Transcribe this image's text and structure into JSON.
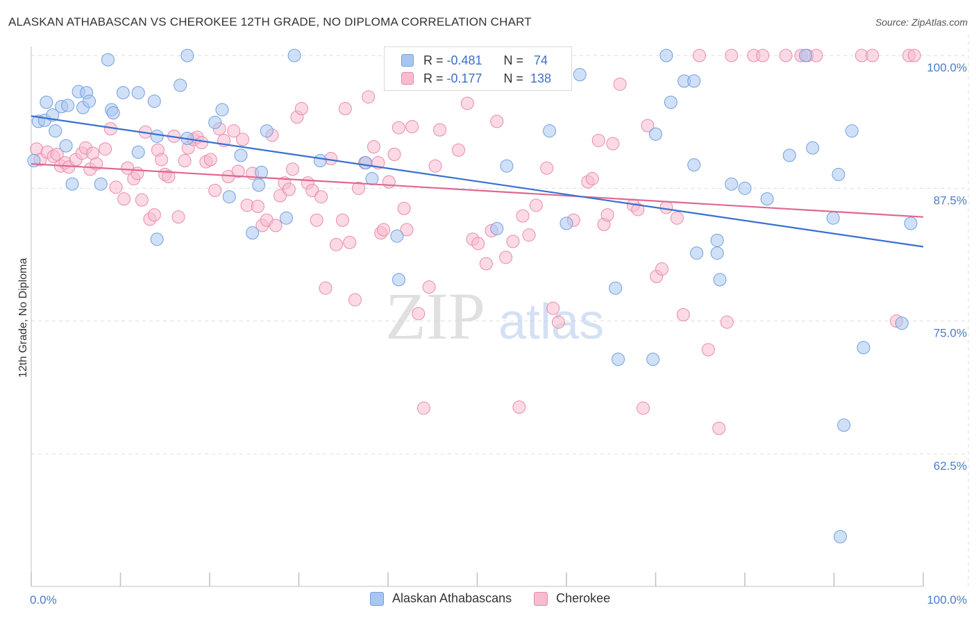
{
  "title": "ALASKAN ATHABASCAN VS CHEROKEE 12TH GRADE, NO DIPLOMA CORRELATION CHART",
  "source": "Source: ZipAtlas.com",
  "watermark": {
    "zip": "ZIP",
    "atlas": "atlas"
  },
  "legend": {
    "rows": [
      {
        "r_label": "R =",
        "r_value": "-0.481",
        "n_label": "N =",
        "n_value": "74",
        "color": "#a9c6f0",
        "border": "#6f9fe0"
      },
      {
        "r_label": "R =",
        "r_value": "-0.177",
        "n_label": "N =",
        "n_value": "138",
        "color": "#f7bcd0",
        "border": "#ea89a9"
      }
    ]
  },
  "bottom_legend": [
    "Alaskan Athabascans",
    "Cherokee"
  ],
  "colors": {
    "blue_fill": "#a9c6f0",
    "blue_stroke": "#6f9fe0",
    "blue_line": "#3570d0",
    "pink_fill": "#f7bcd0",
    "pink_stroke": "#ea89a9",
    "pink_line": "#e0678f"
  },
  "chart_data": {
    "type": "scatter",
    "title": "ALASKAN ATHABASCAN VS CHEROKEE 12TH GRADE, NO DIPLOMA CORRELATION CHART",
    "xlabel": "",
    "ylabel": "12th Grade, No Diploma",
    "xlim": [
      0,
      100
    ],
    "ylim": [
      51.5,
      104
    ],
    "x_tick_labels": [
      "0.0%",
      "100.0%"
    ],
    "y_ticks": [
      100,
      87.5,
      75,
      62.5
    ],
    "y_tick_labels": [
      "100.0%",
      "87.5%",
      "75.0%",
      "62.5%"
    ],
    "grid": true,
    "series": [
      {
        "name": "Alaskan Athabascans",
        "trend": {
          "x": [
            0,
            100
          ],
          "y": [
            94.3,
            82.0
          ]
        },
        "points": [
          [
            0.3,
            90.1
          ],
          [
            0.8,
            93.8
          ],
          [
            1.5,
            93.9
          ],
          [
            1.7,
            95.6
          ],
          [
            2.4,
            94.4
          ],
          [
            2.7,
            92.9
          ],
          [
            3.4,
            95.2
          ],
          [
            3.9,
            91.5
          ],
          [
            4.1,
            95.3
          ],
          [
            4.6,
            87.9
          ],
          [
            5.3,
            96.6
          ],
          [
            5.8,
            95.1
          ],
          [
            6.2,
            96.5
          ],
          [
            6.5,
            95.7
          ],
          [
            7.8,
            87.9
          ],
          [
            8.6,
            99.6
          ],
          [
            9.0,
            94.9
          ],
          [
            9.2,
            94.6
          ],
          [
            10.3,
            96.5
          ],
          [
            12.0,
            96.5
          ],
          [
            12.0,
            90.9
          ],
          [
            13.8,
            95.7
          ],
          [
            14.1,
            82.7
          ],
          [
            14.1,
            92.4
          ],
          [
            16.7,
            97.2
          ],
          [
            17.5,
            100.0
          ],
          [
            17.5,
            92.2
          ],
          [
            20.6,
            93.7
          ],
          [
            21.4,
            94.9
          ],
          [
            22.2,
            86.7
          ],
          [
            23.5,
            90.6
          ],
          [
            24.8,
            83.3
          ],
          [
            25.5,
            87.8
          ],
          [
            25.8,
            89.0
          ],
          [
            26.4,
            92.9
          ],
          [
            28.6,
            84.7
          ],
          [
            29.5,
            100.0
          ],
          [
            32.4,
            90.1
          ],
          [
            37.5,
            89.9
          ],
          [
            38.2,
            88.4
          ],
          [
            41.0,
            83.0
          ],
          [
            41.2,
            78.9
          ],
          [
            52.2,
            83.7
          ],
          [
            53.3,
            89.6
          ],
          [
            58.1,
            92.9
          ],
          [
            60.0,
            84.2
          ],
          [
            61.5,
            98.2
          ],
          [
            65.5,
            78.1
          ],
          [
            65.8,
            71.4
          ],
          [
            69.7,
            71.4
          ],
          [
            70.0,
            92.6
          ],
          [
            71.2,
            100.0
          ],
          [
            71.7,
            95.6
          ],
          [
            73.2,
            97.6
          ],
          [
            74.3,
            97.6
          ],
          [
            74.3,
            89.7
          ],
          [
            74.6,
            81.4
          ],
          [
            76.9,
            82.6
          ],
          [
            76.9,
            81.4
          ],
          [
            77.2,
            78.9
          ],
          [
            78.5,
            87.9
          ],
          [
            80.0,
            87.5
          ],
          [
            82.5,
            86.5
          ],
          [
            85.0,
            90.6
          ],
          [
            86.8,
            100.0
          ],
          [
            87.6,
            91.3
          ],
          [
            89.9,
            84.7
          ],
          [
            90.5,
            88.8
          ],
          [
            90.7,
            54.7
          ],
          [
            91.1,
            65.2
          ],
          [
            92.0,
            92.9
          ],
          [
            93.3,
            72.5
          ],
          [
            97.6,
            74.8
          ],
          [
            98.6,
            84.2
          ]
        ]
      },
      {
        "name": "Cherokee",
        "trend": {
          "x": [
            0,
            100
          ],
          "y": [
            89.8,
            84.8
          ]
        },
        "points": [
          [
            0.6,
            91.2
          ],
          [
            1.0,
            90.2
          ],
          [
            1.8,
            90.9
          ],
          [
            2.5,
            90.5
          ],
          [
            2.9,
            90.7
          ],
          [
            3.3,
            89.6
          ],
          [
            3.8,
            89.9
          ],
          [
            4.2,
            89.5
          ],
          [
            5.0,
            90.2
          ],
          [
            5.7,
            90.8
          ],
          [
            6.1,
            91.3
          ],
          [
            6.6,
            89.3
          ],
          [
            6.9,
            90.8
          ],
          [
            7.3,
            89.8
          ],
          [
            8.3,
            91.2
          ],
          [
            8.9,
            93.1
          ],
          [
            9.5,
            87.6
          ],
          [
            10.4,
            86.5
          ],
          [
            10.8,
            89.4
          ],
          [
            11.5,
            88.4
          ],
          [
            11.9,
            88.9
          ],
          [
            12.4,
            86.4
          ],
          [
            12.8,
            92.8
          ],
          [
            13.3,
            84.6
          ],
          [
            13.8,
            85.0
          ],
          [
            14.2,
            91.1
          ],
          [
            14.6,
            90.2
          ],
          [
            15.0,
            88.8
          ],
          [
            15.4,
            88.6
          ],
          [
            16.0,
            92.4
          ],
          [
            16.5,
            84.8
          ],
          [
            17.2,
            90.1
          ],
          [
            17.6,
            91.3
          ],
          [
            18.2,
            92.1
          ],
          [
            18.6,
            92.3
          ],
          [
            19.1,
            91.8
          ],
          [
            19.6,
            90.0
          ],
          [
            20.1,
            90.2
          ],
          [
            20.6,
            87.3
          ],
          [
            21.1,
            93.1
          ],
          [
            21.6,
            92.0
          ],
          [
            22.1,
            88.6
          ],
          [
            22.7,
            92.9
          ],
          [
            23.2,
            89.1
          ],
          [
            23.7,
            92.1
          ],
          [
            24.2,
            85.9
          ],
          [
            24.8,
            88.9
          ],
          [
            25.4,
            85.8
          ],
          [
            25.9,
            84.0
          ],
          [
            26.4,
            84.5
          ],
          [
            27.0,
            92.5
          ],
          [
            27.4,
            84.0
          ],
          [
            27.9,
            86.8
          ],
          [
            28.4,
            88.0
          ],
          [
            28.9,
            87.4
          ],
          [
            29.3,
            89.3
          ],
          [
            29.8,
            94.2
          ],
          [
            30.3,
            95.0
          ],
          [
            31.0,
            88.0
          ],
          [
            31.5,
            87.3
          ],
          [
            32.0,
            84.5
          ],
          [
            32.5,
            86.7
          ],
          [
            33.0,
            78.1
          ],
          [
            33.6,
            90.3
          ],
          [
            34.2,
            82.2
          ],
          [
            34.9,
            84.5
          ],
          [
            35.2,
            95.0
          ],
          [
            35.7,
            82.4
          ],
          [
            36.3,
            77.0
          ],
          [
            36.7,
            87.5
          ],
          [
            37.4,
            89.9
          ],
          [
            37.8,
            96.1
          ],
          [
            38.4,
            91.4
          ],
          [
            38.9,
            89.9
          ],
          [
            39.2,
            83.3
          ],
          [
            39.5,
            83.6
          ],
          [
            40.1,
            88.1
          ],
          [
            40.7,
            90.7
          ],
          [
            41.2,
            93.2
          ],
          [
            41.8,
            85.6
          ],
          [
            42.1,
            83.6
          ],
          [
            42.7,
            93.3
          ],
          [
            43.4,
            75.7
          ],
          [
            44.0,
            66.8
          ],
          [
            44.6,
            78.2
          ],
          [
            45.3,
            89.6
          ],
          [
            45.8,
            93.0
          ],
          [
            46.4,
            100.0
          ],
          [
            47.9,
            91.1
          ],
          [
            48.3,
            100.0
          ],
          [
            48.9,
            95.5
          ],
          [
            49.5,
            82.7
          ],
          [
            50.1,
            82.3
          ],
          [
            51.0,
            80.4
          ],
          [
            51.6,
            83.5
          ],
          [
            52.2,
            93.8
          ],
          [
            53.2,
            81.0
          ],
          [
            54.0,
            82.5
          ],
          [
            54.7,
            66.9
          ],
          [
            55.1,
            84.9
          ],
          [
            55.8,
            83.1
          ],
          [
            56.6,
            85.9
          ],
          [
            57.8,
            89.4
          ],
          [
            58.5,
            76.2
          ],
          [
            59.1,
            74.9
          ],
          [
            60.8,
            84.5
          ],
          [
            62.4,
            88.1
          ],
          [
            62.9,
            88.4
          ],
          [
            63.6,
            92.0
          ],
          [
            64.2,
            84.1
          ],
          [
            64.6,
            85.0
          ],
          [
            65.2,
            91.7
          ],
          [
            66.0,
            97.3
          ],
          [
            67.5,
            85.9
          ],
          [
            68.0,
            85.5
          ],
          [
            68.6,
            66.8
          ],
          [
            69.1,
            93.4
          ],
          [
            70.1,
            79.2
          ],
          [
            70.7,
            79.9
          ],
          [
            71.2,
            85.7
          ],
          [
            72.4,
            84.7
          ],
          [
            73.1,
            75.6
          ],
          [
            74.9,
            100.0
          ],
          [
            75.9,
            72.3
          ],
          [
            77.1,
            64.9
          ],
          [
            78.0,
            74.9
          ],
          [
            78.5,
            100.0
          ],
          [
            81.0,
            100.0
          ],
          [
            82.0,
            100.0
          ],
          [
            84.6,
            100.0
          ],
          [
            86.3,
            100.0
          ],
          [
            87.0,
            100.0
          ],
          [
            88.0,
            100.0
          ],
          [
            93.1,
            100.0
          ],
          [
            94.3,
            100.0
          ],
          [
            97.0,
            75.0
          ],
          [
            98.4,
            100.0
          ],
          [
            99.0,
            100.0
          ]
        ]
      }
    ]
  }
}
